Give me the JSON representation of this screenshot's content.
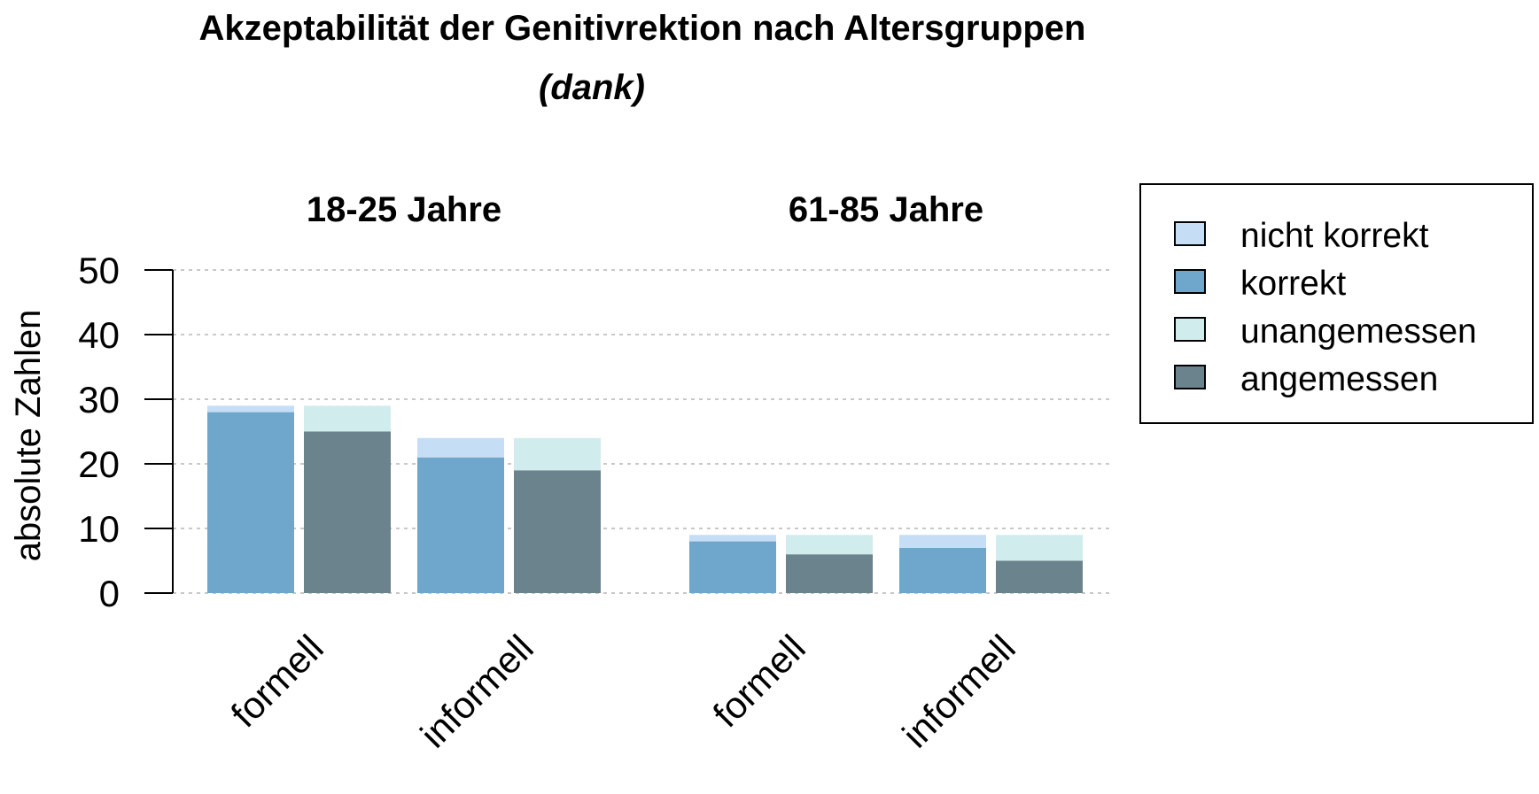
{
  "chart_data": {
    "type": "bar",
    "title": "Akzeptabilität der Genitivrektion nach Altersgruppen",
    "subtitle": "(dank)",
    "ylabel": "absolute Zahlen",
    "ylim": [
      0,
      50
    ],
    "yticks": [
      0,
      10,
      20,
      30,
      40,
      50
    ],
    "grid": true,
    "legend_position": "right",
    "legend": [
      {
        "label": "nicht korrekt",
        "color": "#c6def5"
      },
      {
        "label": "korrekt",
        "color": "#6fa6cc"
      },
      {
        "label": "unangemessen",
        "color": "#d1ecec"
      },
      {
        "label": "angemessen",
        "color": "#6b838c"
      }
    ],
    "groups": [
      {
        "label": "18-25 Jahre",
        "categories": [
          {
            "label": "formell",
            "bars": [
              {
                "bottom": {
                  "legend": 1,
                  "value": 28
                },
                "top": {
                  "legend": 0,
                  "value": 1
                }
              },
              {
                "bottom": {
                  "legend": 3,
                  "value": 25
                },
                "top": {
                  "legend": 2,
                  "value": 4
                }
              }
            ]
          },
          {
            "label": "informell",
            "bars": [
              {
                "bottom": {
                  "legend": 1,
                  "value": 21
                },
                "top": {
                  "legend": 0,
                  "value": 3
                }
              },
              {
                "bottom": {
                  "legend": 3,
                  "value": 19
                },
                "top": {
                  "legend": 2,
                  "value": 5
                }
              }
            ]
          }
        ]
      },
      {
        "label": "61-85 Jahre",
        "categories": [
          {
            "label": "formell",
            "bars": [
              {
                "bottom": {
                  "legend": 1,
                  "value": 8
                },
                "top": {
                  "legend": 0,
                  "value": 1
                }
              },
              {
                "bottom": {
                  "legend": 3,
                  "value": 6
                },
                "top": {
                  "legend": 2,
                  "value": 3
                }
              }
            ]
          },
          {
            "label": "informell",
            "bars": [
              {
                "bottom": {
                  "legend": 1,
                  "value": 7
                },
                "top": {
                  "legend": 0,
                  "value": 2
                }
              },
              {
                "bottom": {
                  "legend": 3,
                  "value": 5
                },
                "top": {
                  "legend": 2,
                  "value": 4
                }
              }
            ]
          }
        ]
      }
    ]
  }
}
